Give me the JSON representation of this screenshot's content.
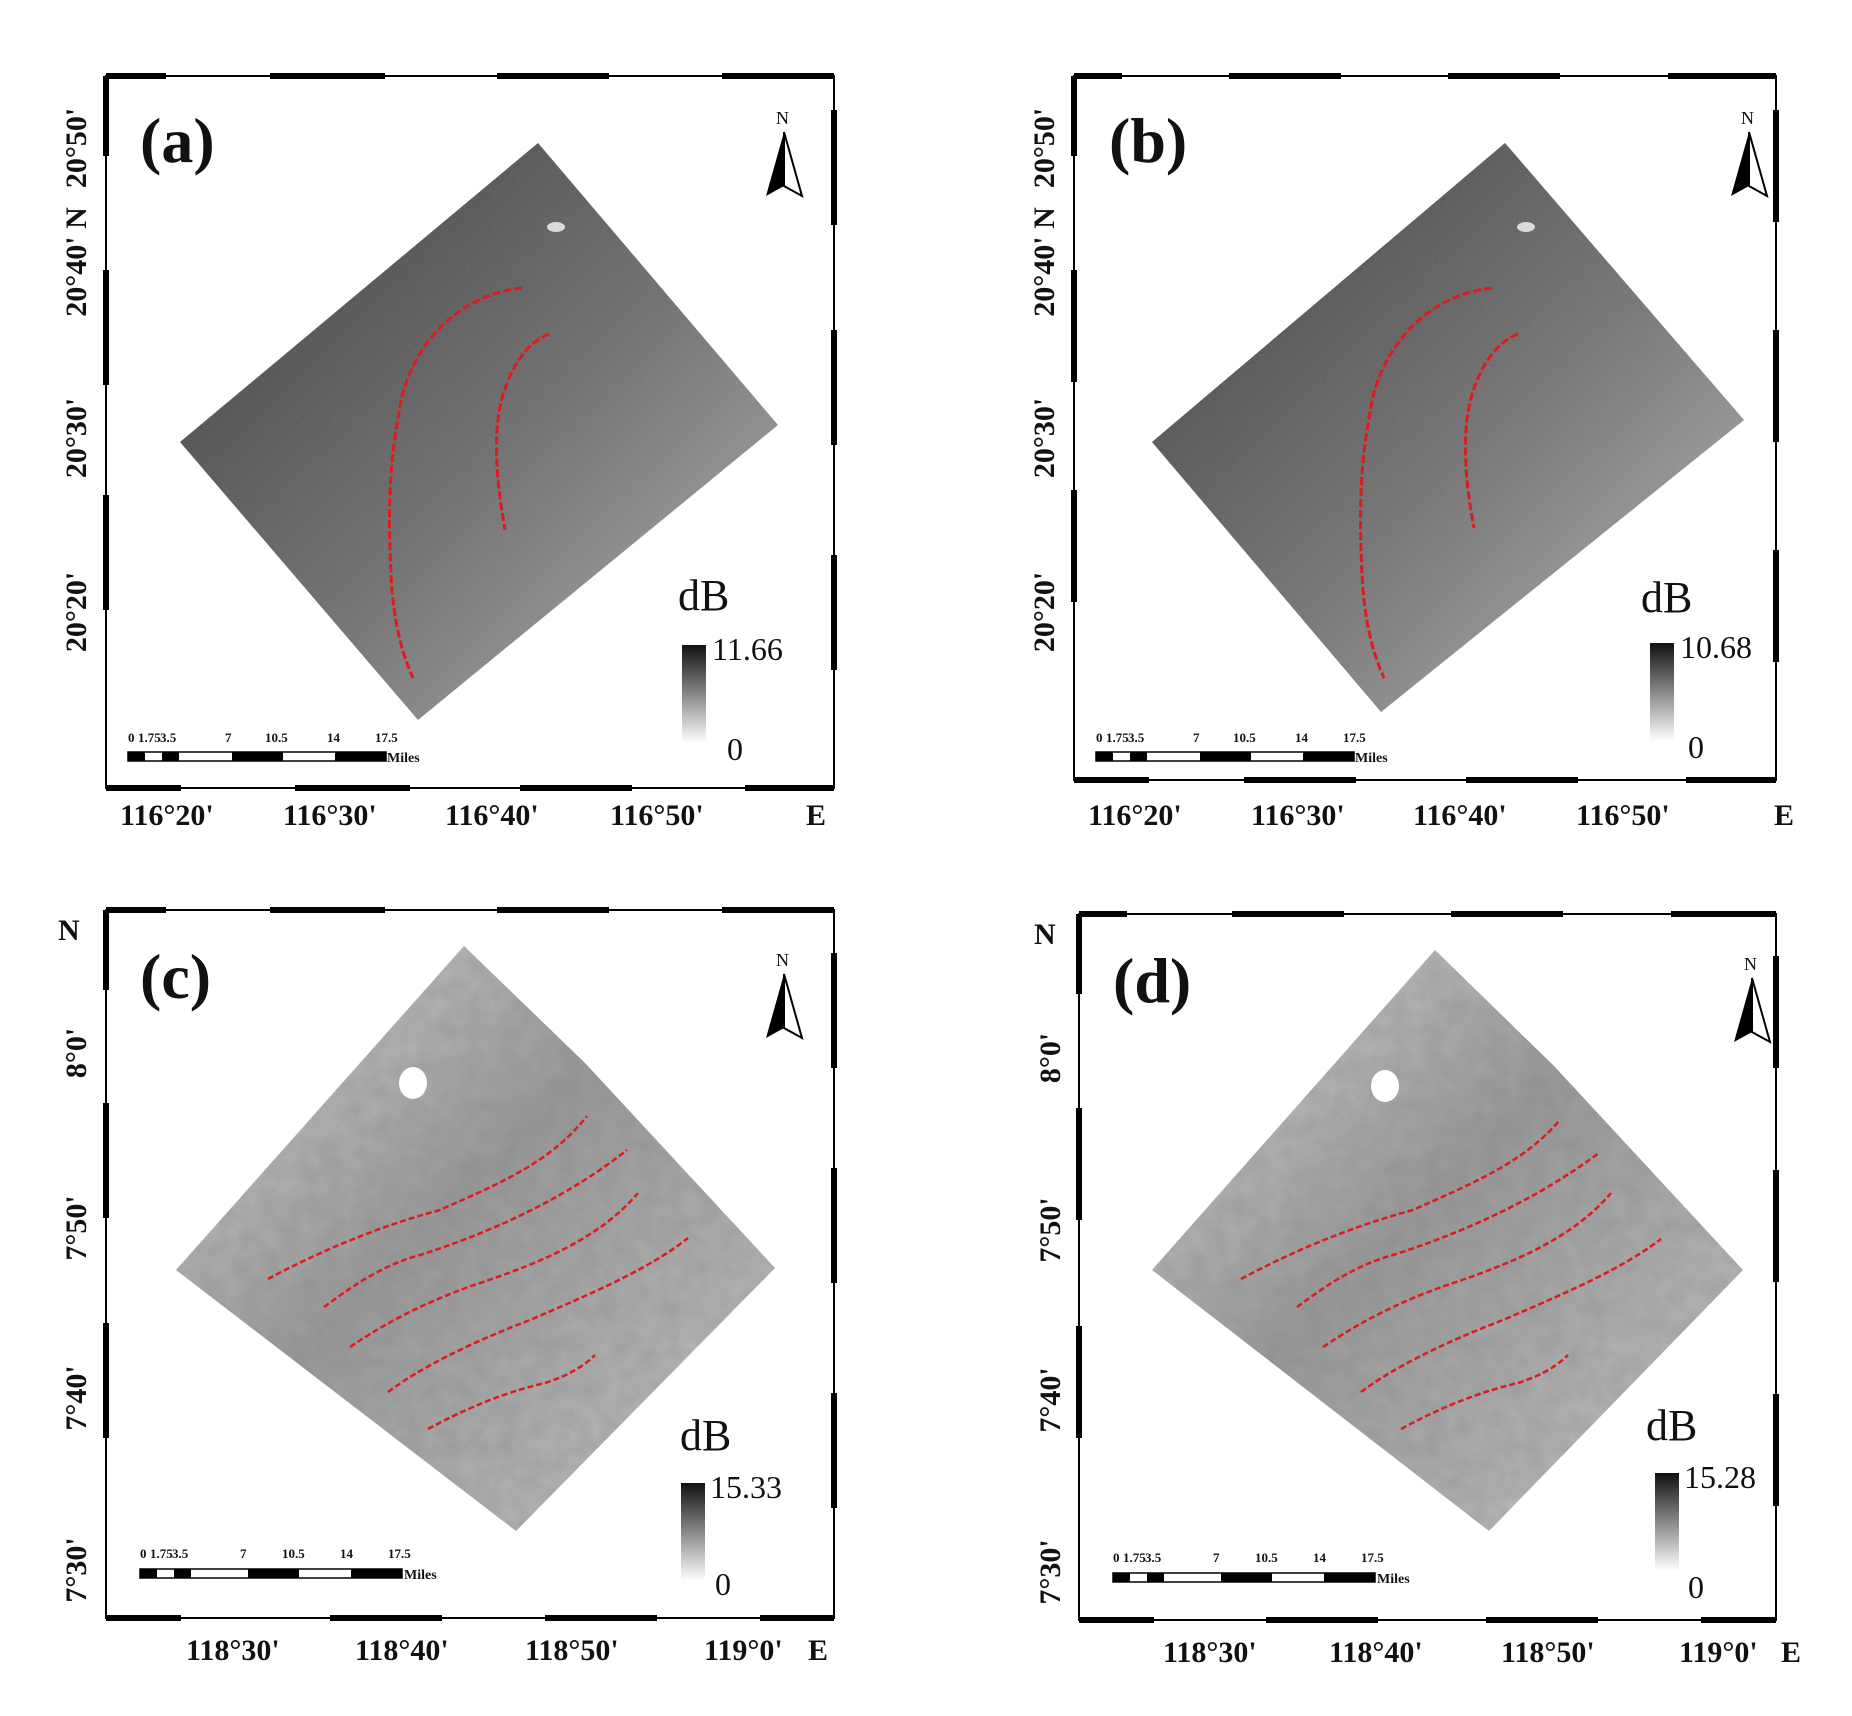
{
  "panels": [
    {
      "label": "(a)",
      "north_letter": "N",
      "legend_unit": "dB",
      "legend_max": "11.66",
      "legend_min": "0",
      "scale_ticks": [
        "0",
        "1.75",
        "3.5",
        "7",
        "10.5",
        "14",
        "17.5"
      ],
      "scale_unit": "Miles",
      "lon_labels": [
        "116°20'",
        "116°30'",
        "116°40'",
        "116°50'"
      ],
      "lon_suffix": "E",
      "lat_labels": [
        "20°50'",
        "20°40' N",
        "20°30'",
        "20°20'"
      ],
      "lat_prefix": "",
      "image_tone": "dark"
    },
    {
      "label": "(b)",
      "north_letter": "N",
      "legend_unit": "dB",
      "legend_max": "10.68",
      "legend_min": "0",
      "scale_ticks": [
        "0",
        "1.75",
        "3.5",
        "7",
        "10.5",
        "14",
        "17.5"
      ],
      "scale_unit": "Miles",
      "lon_labels": [
        "116°20'",
        "116°30'",
        "116°40'",
        "116°50'"
      ],
      "lon_suffix": "E",
      "lat_labels": [
        "20°50'",
        "20°40' N",
        "20°30'",
        "20°20'"
      ],
      "lat_prefix": "",
      "image_tone": "dark"
    },
    {
      "label": "(c)",
      "north_letter": "N",
      "legend_unit": "dB",
      "legend_max": "15.33",
      "legend_min": "0",
      "scale_ticks": [
        "0",
        "1.75",
        "3.5",
        "7",
        "10.5",
        "14",
        "17.5"
      ],
      "scale_unit": "Miles",
      "lon_labels": [
        "118°30'",
        "118°40'",
        "118°50'",
        "119°0'"
      ],
      "lon_suffix": "E",
      "lat_labels": [
        "8°0'",
        "7°50'",
        "7°40'",
        "7°30'"
      ],
      "lat_prefix": "N",
      "image_tone": "light"
    },
    {
      "label": "(d)",
      "north_letter": "N",
      "legend_unit": "dB",
      "legend_max": "15.28",
      "legend_min": "0",
      "scale_ticks": [
        "0",
        "1.75",
        "3.5",
        "7",
        "10.5",
        "14",
        "17.5"
      ],
      "scale_unit": "Miles",
      "lon_labels": [
        "118°30'",
        "118°40'",
        "118°50'",
        "119°0'"
      ],
      "lon_suffix": "E",
      "lat_labels": [
        "8°0'",
        "7°50'",
        "7°40'",
        "7°30'"
      ],
      "lat_prefix": "N",
      "image_tone": "light"
    }
  ],
  "colors": {
    "frame": "#000000",
    "feature_line": "#e0191b",
    "background": "#ffffff"
  }
}
